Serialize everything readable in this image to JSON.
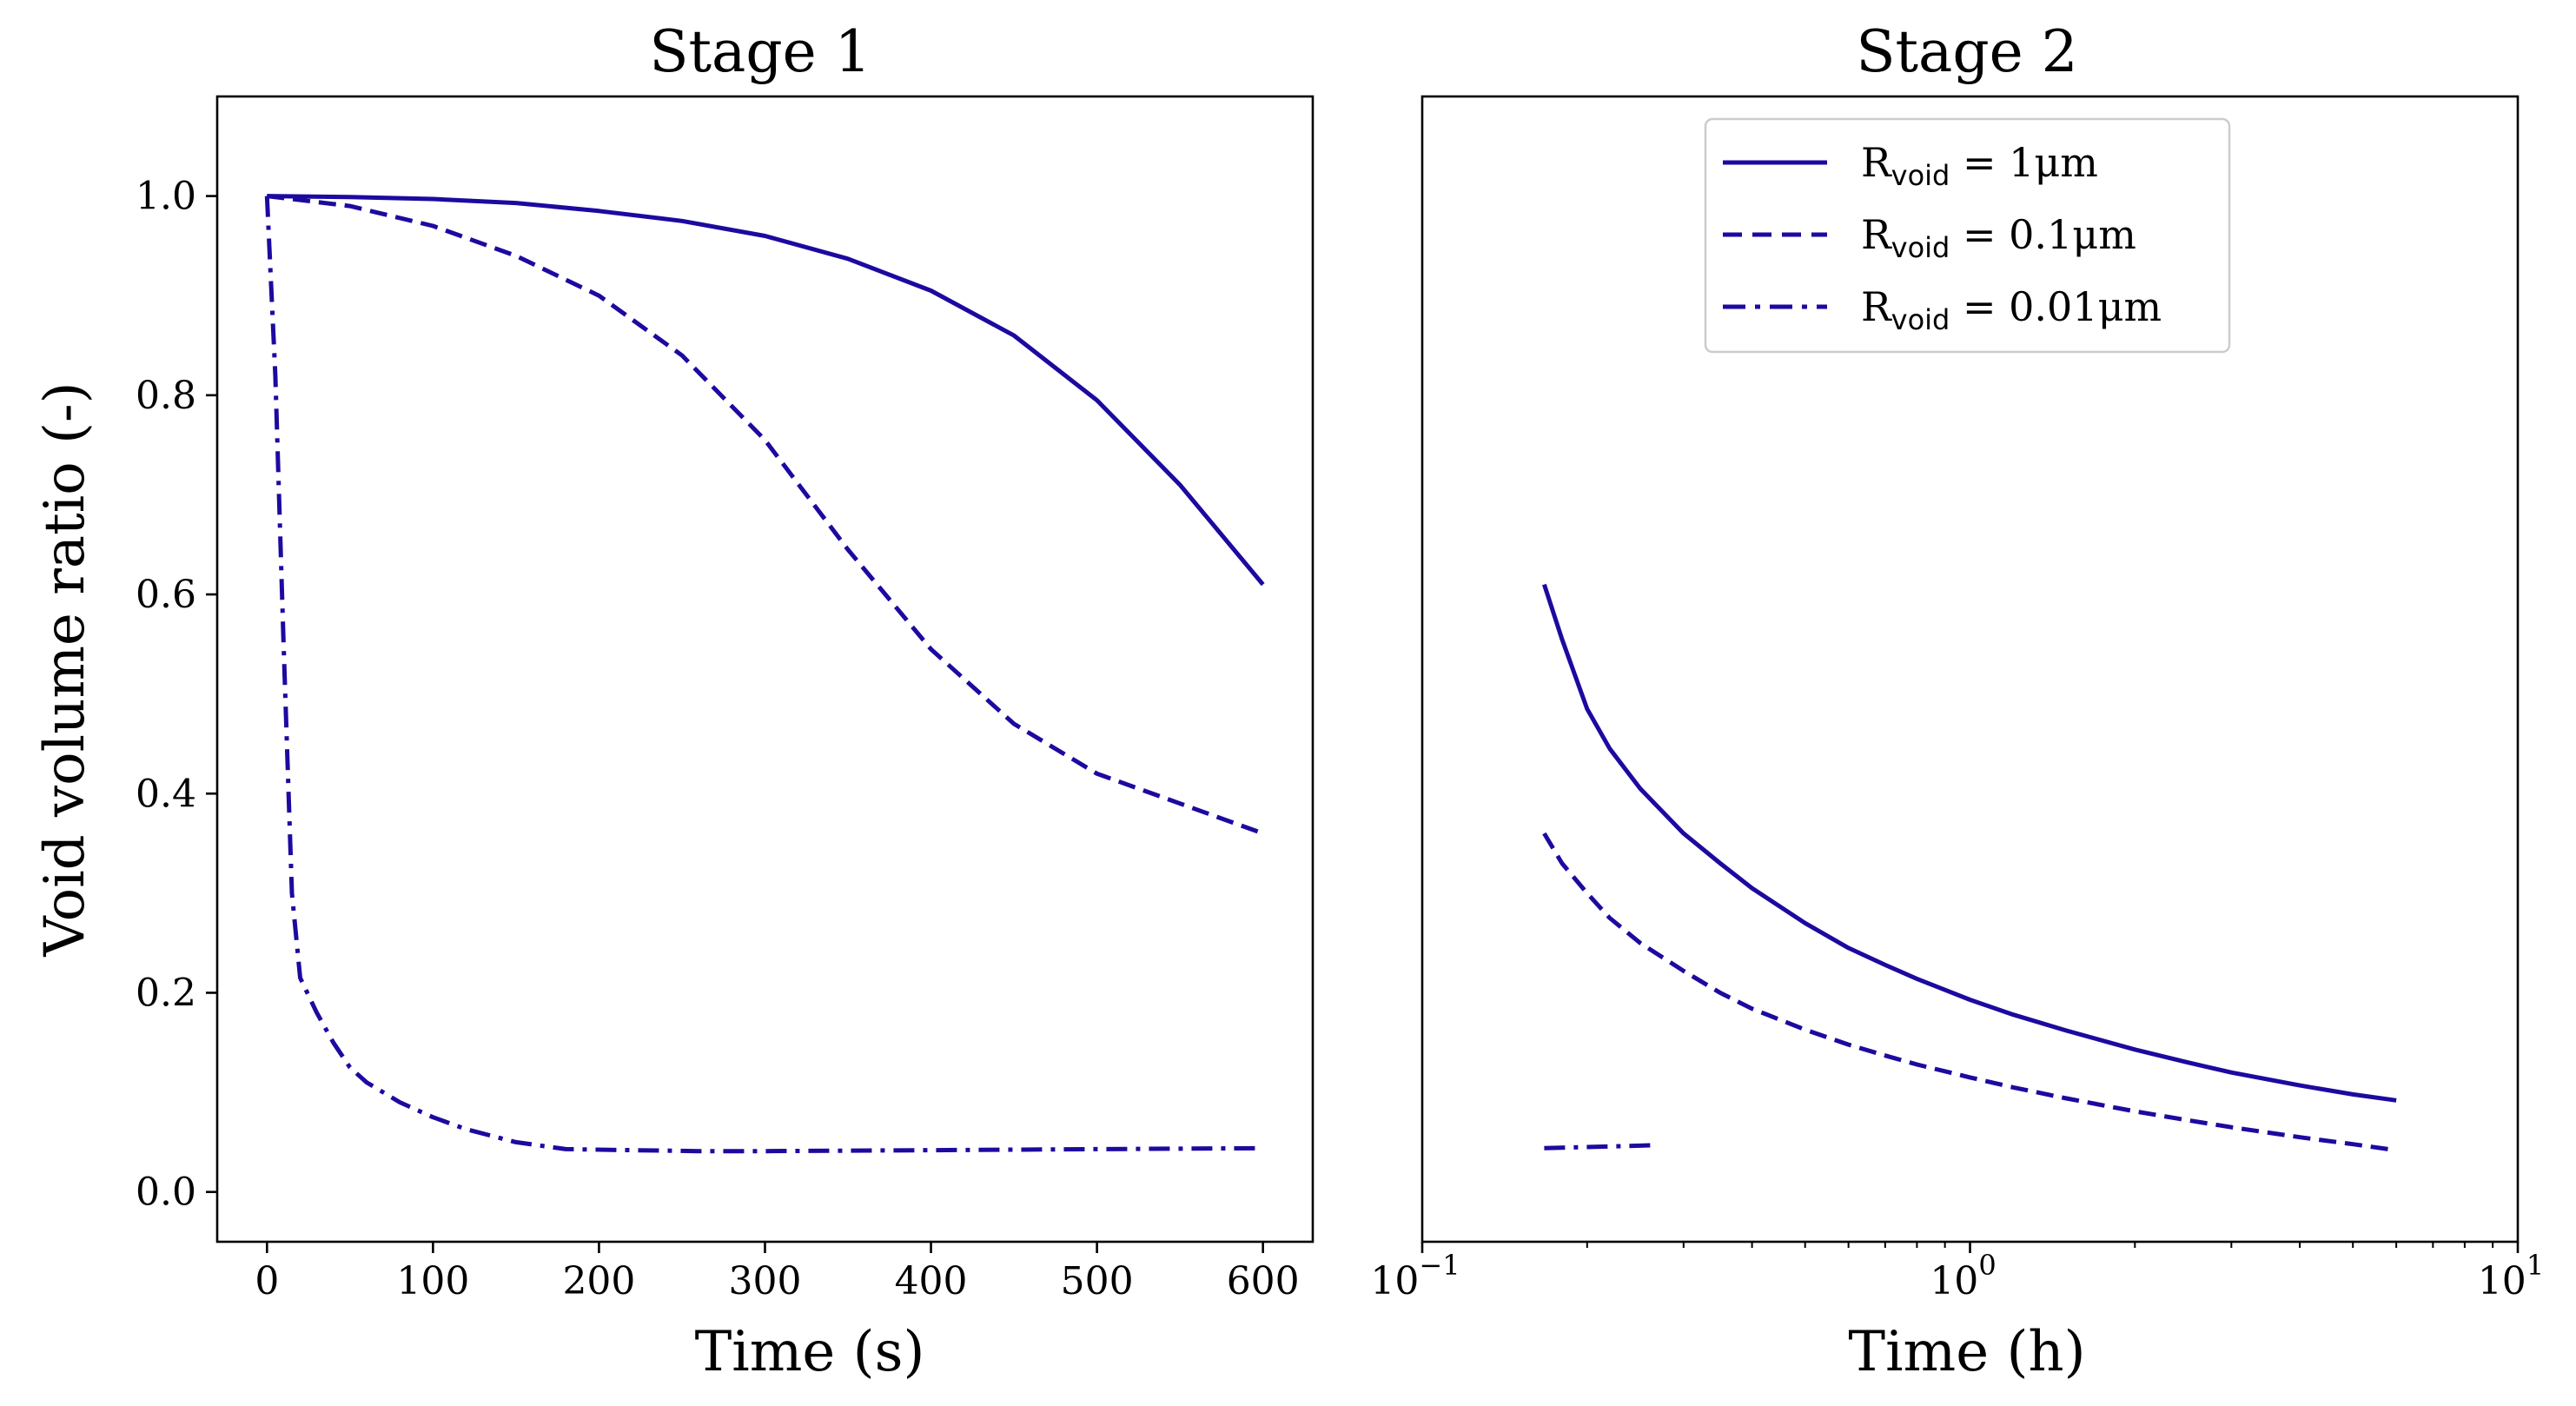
{
  "figure": {
    "line_color": "#1c0aa0"
  },
  "chart_data": [
    {
      "type": "line",
      "title": "Stage 1",
      "xlabel": "Time (s)",
      "ylabel": "Void volume ratio (-)",
      "xlim": [
        -30,
        630
      ],
      "ylim": [
        -0.05,
        1.1
      ],
      "xscale": "linear",
      "xticks": [
        0,
        100,
        200,
        300,
        400,
        500,
        600
      ],
      "yticks": [
        0.0,
        0.2,
        0.4,
        0.6,
        0.8,
        1.0
      ],
      "xtick_labels": [
        "0",
        "100",
        "200",
        "300",
        "400",
        "500",
        "600"
      ],
      "ytick_labels": [
        "0.0",
        "0.2",
        "0.4",
        "0.6",
        "0.8",
        "1.0"
      ],
      "series": [
        {
          "name": "R_void = 1μm",
          "style": "solid",
          "x": [
            0,
            50,
            100,
            150,
            200,
            250,
            300,
            350,
            400,
            450,
            500,
            550,
            600
          ],
          "y": [
            1.0,
            0.999,
            0.997,
            0.993,
            0.985,
            0.975,
            0.96,
            0.937,
            0.905,
            0.86,
            0.795,
            0.71,
            0.61
          ]
        },
        {
          "name": "R_void = 0.1μm",
          "style": "dashed",
          "x": [
            0,
            50,
            100,
            150,
            200,
            250,
            300,
            350,
            400,
            450,
            500,
            550,
            600
          ],
          "y": [
            1.0,
            0.99,
            0.97,
            0.94,
            0.9,
            0.84,
            0.755,
            0.645,
            0.545,
            0.47,
            0.42,
            0.39,
            0.36
          ]
        },
        {
          "name": "R_void = 0.01μm",
          "style": "dashdot",
          "x": [
            0,
            5,
            10,
            15,
            20,
            30,
            40,
            50,
            60,
            80,
            100,
            120,
            150,
            180,
            220,
            260,
            300,
            400,
            500,
            600
          ],
          "y": [
            1.0,
            0.82,
            0.55,
            0.3,
            0.215,
            0.18,
            0.15,
            0.125,
            0.11,
            0.09,
            0.075,
            0.063,
            0.05,
            0.043,
            0.042,
            0.041,
            0.041,
            0.042,
            0.043,
            0.044
          ]
        }
      ]
    },
    {
      "type": "line",
      "title": "Stage 2",
      "xlabel": "Time (h)",
      "ylabel": "",
      "xlim": [
        0.1,
        10
      ],
      "ylim": [
        -0.05,
        1.1
      ],
      "xscale": "log",
      "xticks": [
        0.1,
        1,
        10
      ],
      "xtick_labels": [
        {
          "base": "10",
          "exp": "−1"
        },
        {
          "base": "10",
          "exp": "0"
        },
        {
          "base": "10",
          "exp": "1"
        }
      ],
      "yticks": [],
      "series": [
        {
          "name": "R_void = 1μm",
          "style": "solid",
          "x": [
            0.167,
            0.18,
            0.2,
            0.22,
            0.25,
            0.3,
            0.35,
            0.4,
            0.5,
            0.6,
            0.7,
            0.8,
            1.0,
            1.2,
            1.5,
            2.0,
            2.5,
            3.0,
            4.0,
            5.0,
            6.0
          ],
          "y": [
            0.61,
            0.555,
            0.485,
            0.445,
            0.405,
            0.36,
            0.33,
            0.305,
            0.27,
            0.245,
            0.228,
            0.214,
            0.193,
            0.178,
            0.162,
            0.143,
            0.13,
            0.12,
            0.107,
            0.098,
            0.092
          ]
        },
        {
          "name": "R_void = 0.1μm",
          "style": "dashed",
          "x": [
            0.167,
            0.18,
            0.2,
            0.22,
            0.25,
            0.3,
            0.35,
            0.4,
            0.5,
            0.6,
            0.7,
            0.8,
            1.0,
            1.2,
            1.5,
            2.0,
            2.5,
            3.0,
            4.0,
            5.0,
            5.8
          ],
          "y": [
            0.36,
            0.33,
            0.3,
            0.275,
            0.25,
            0.222,
            0.2,
            0.184,
            0.163,
            0.148,
            0.137,
            0.128,
            0.115,
            0.105,
            0.094,
            0.081,
            0.072,
            0.065,
            0.055,
            0.048,
            0.043
          ]
        },
        {
          "name": "R_void = 0.01μm",
          "style": "dashdot",
          "x": [
            0.167,
            0.27
          ],
          "y": [
            0.044,
            0.047
          ]
        }
      ],
      "legend": {
        "location": "upper center",
        "entries": [
          {
            "prefix": "R",
            "sub": "void",
            "suffix": " = 1μm",
            "style": "solid"
          },
          {
            "prefix": "R",
            "sub": "void",
            "suffix": " = 0.1μm",
            "style": "dashed"
          },
          {
            "prefix": "R",
            "sub": "void",
            "suffix": " = 0.01μm",
            "style": "dashdot"
          }
        ]
      }
    }
  ]
}
